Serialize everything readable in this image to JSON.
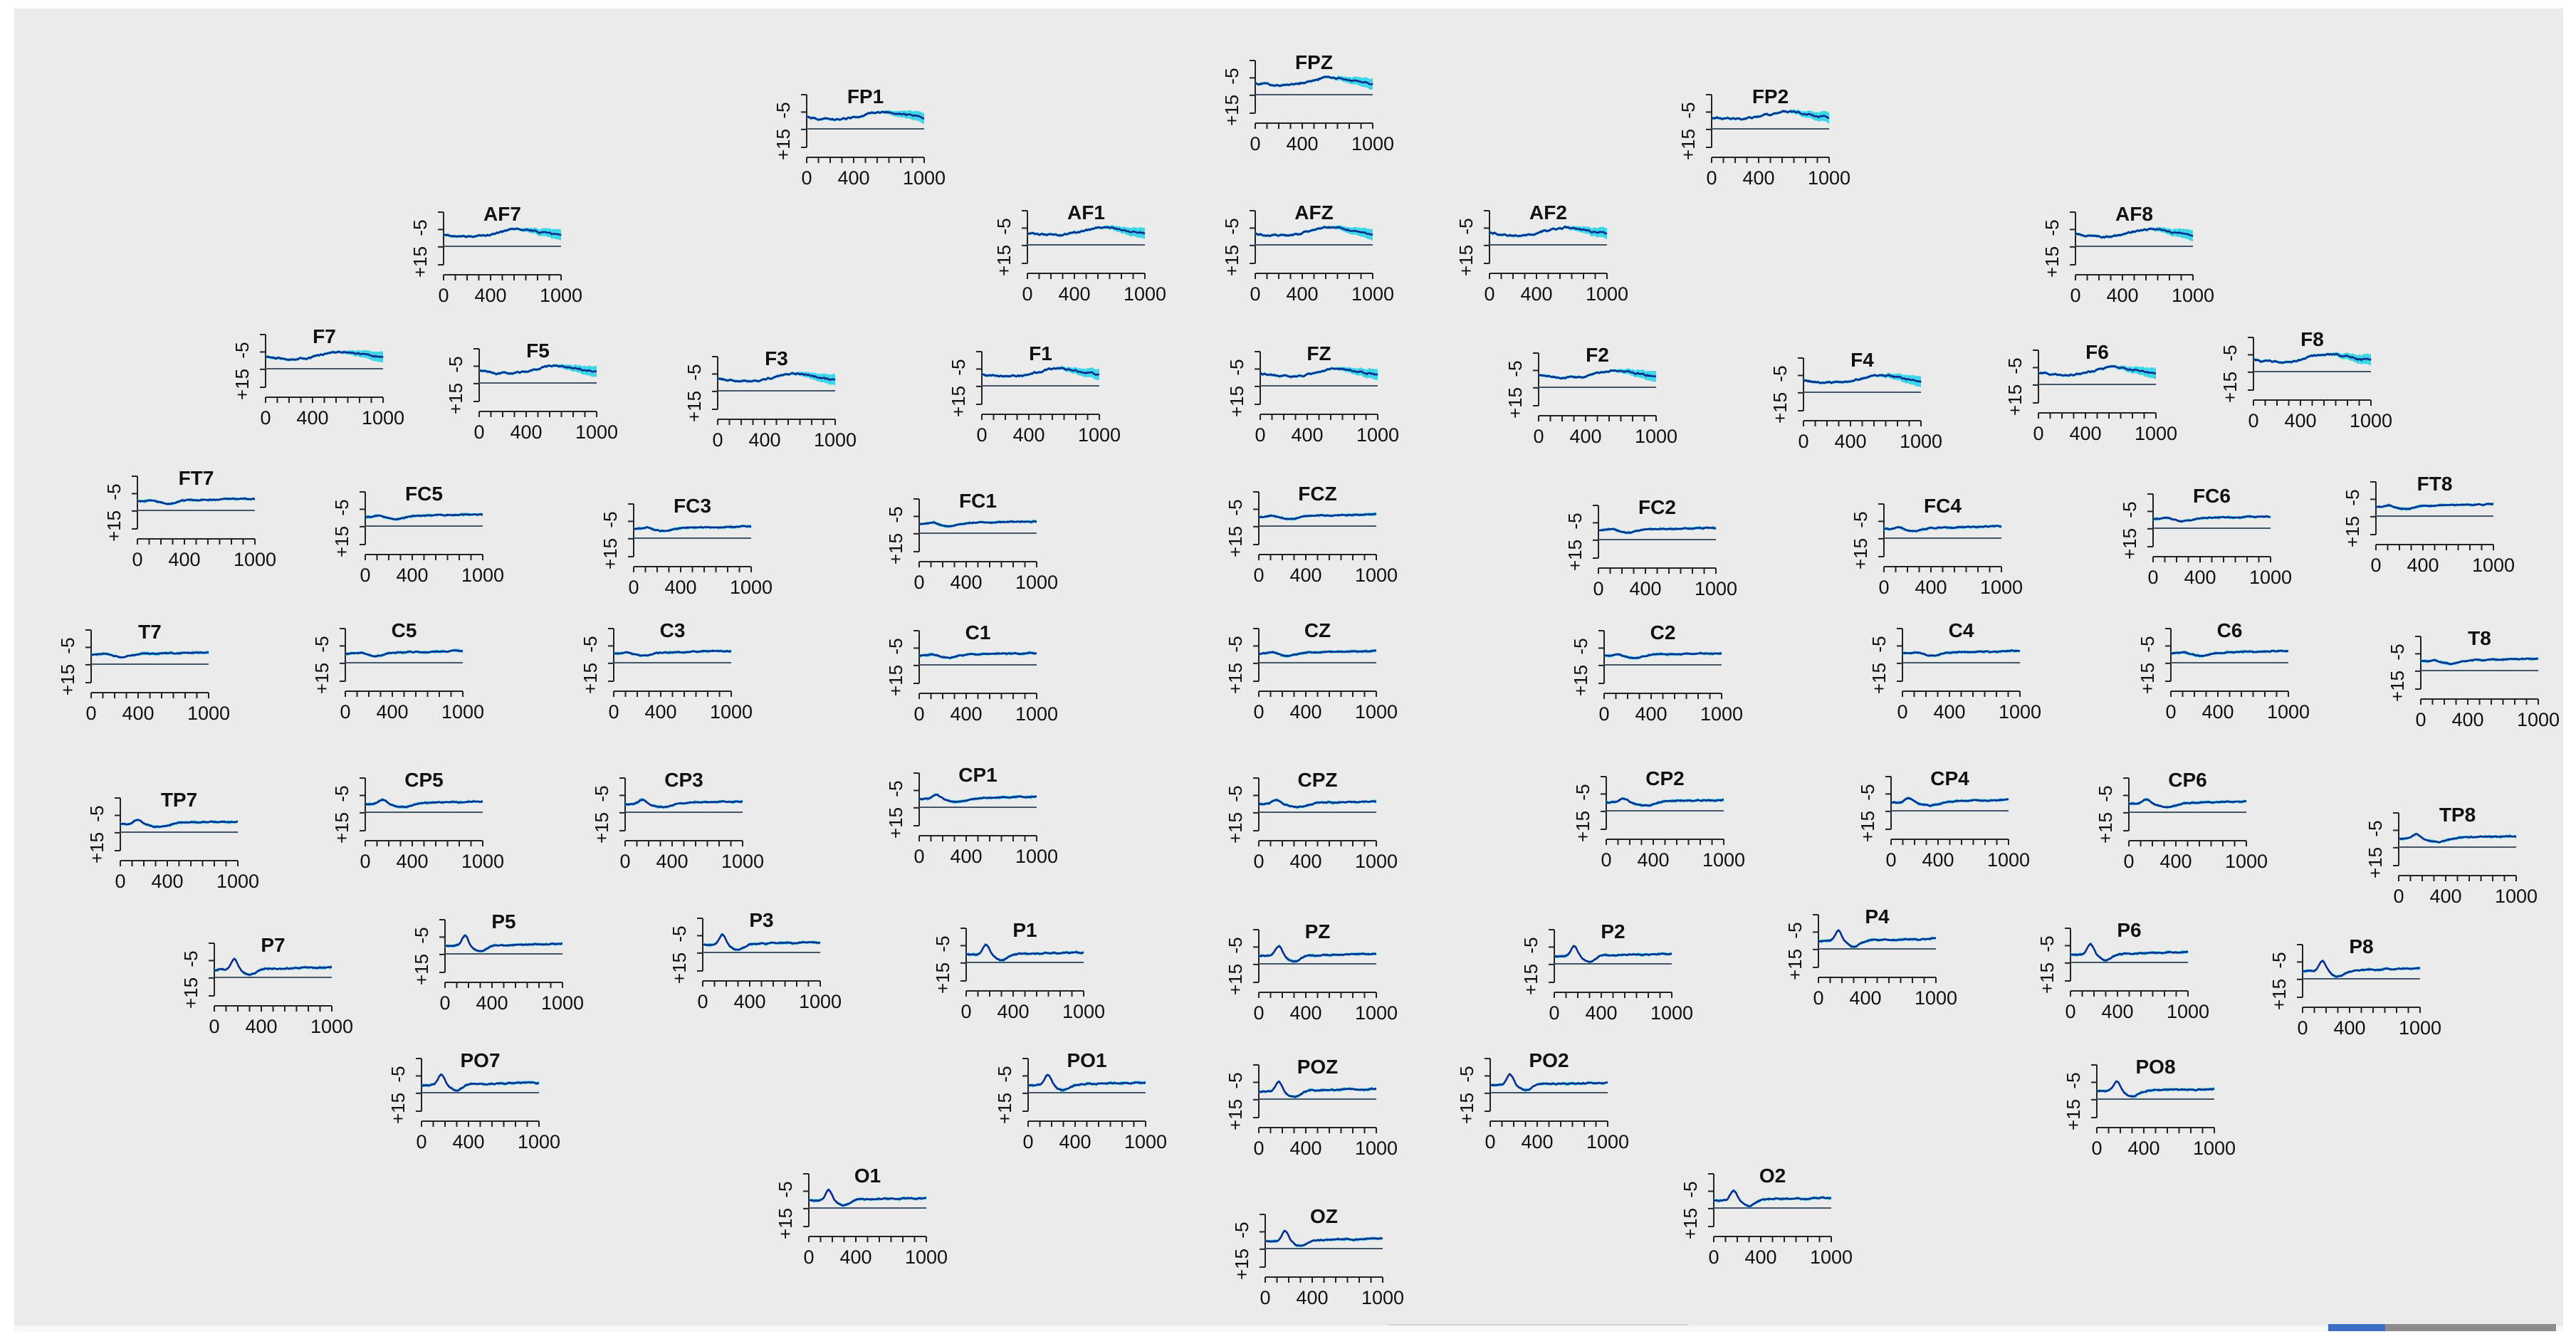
{
  "chart_data": {
    "type": "line",
    "layout": "scalp-topographic grid of small ERP line plots, one per electrode",
    "x_axis": {
      "ticks": [
        0,
        400,
        1000
      ],
      "range": [
        0,
        1000
      ]
    },
    "y_axis": {
      "ticks": [
        "-5",
        "+15"
      ],
      "range": [
        -5,
        15
      ],
      "inverted": true
    },
    "band_color": "#1ed4e8",
    "line_color": "#0b2c8f",
    "baseline_color": "#44556a",
    "plots": [
      {
        "name": "FPZ",
        "shape": "frontal"
      },
      {
        "name": "FP1",
        "shape": "frontal"
      },
      {
        "name": "FP2",
        "shape": "frontal"
      },
      {
        "name": "AF7",
        "shape": "frontal"
      },
      {
        "name": "AF1",
        "shape": "frontal"
      },
      {
        "name": "AFZ",
        "shape": "frontal"
      },
      {
        "name": "AF2",
        "shape": "frontal"
      },
      {
        "name": "AF8",
        "shape": "frontal"
      },
      {
        "name": "F7",
        "shape": "frontal"
      },
      {
        "name": "F5",
        "shape": "frontal"
      },
      {
        "name": "F3",
        "shape": "frontal"
      },
      {
        "name": "F1",
        "shape": "frontal"
      },
      {
        "name": "FZ",
        "shape": "frontal"
      },
      {
        "name": "F2",
        "shape": "frontal"
      },
      {
        "name": "F4",
        "shape": "frontal"
      },
      {
        "name": "F6",
        "shape": "frontal"
      },
      {
        "name": "F8",
        "shape": "frontal"
      },
      {
        "name": "FT7",
        "shape": "central"
      },
      {
        "name": "FC5",
        "shape": "central"
      },
      {
        "name": "FC3",
        "shape": "central"
      },
      {
        "name": "FC1",
        "shape": "central"
      },
      {
        "name": "FCZ",
        "shape": "central"
      },
      {
        "name": "FC2",
        "shape": "central"
      },
      {
        "name": "FC4",
        "shape": "central"
      },
      {
        "name": "FC6",
        "shape": "central"
      },
      {
        "name": "FT8",
        "shape": "central"
      },
      {
        "name": "T7",
        "shape": "central"
      },
      {
        "name": "C5",
        "shape": "central"
      },
      {
        "name": "C3",
        "shape": "central"
      },
      {
        "name": "C1",
        "shape": "central"
      },
      {
        "name": "CZ",
        "shape": "central"
      },
      {
        "name": "C2",
        "shape": "central"
      },
      {
        "name": "C4",
        "shape": "central"
      },
      {
        "name": "C6",
        "shape": "central"
      },
      {
        "name": "T8",
        "shape": "central"
      },
      {
        "name": "TP7",
        "shape": "parietal"
      },
      {
        "name": "CP5",
        "shape": "parietal"
      },
      {
        "name": "CP3",
        "shape": "parietal"
      },
      {
        "name": "CP1",
        "shape": "parietal"
      },
      {
        "name": "CPZ",
        "shape": "parietal"
      },
      {
        "name": "CP2",
        "shape": "parietal"
      },
      {
        "name": "CP4",
        "shape": "parietal"
      },
      {
        "name": "CP6",
        "shape": "parietal"
      },
      {
        "name": "TP8",
        "shape": "parietal"
      },
      {
        "name": "P7",
        "shape": "occipital"
      },
      {
        "name": "P5",
        "shape": "occipital"
      },
      {
        "name": "P3",
        "shape": "occipital"
      },
      {
        "name": "P1",
        "shape": "occipital"
      },
      {
        "name": "PZ",
        "shape": "occipital"
      },
      {
        "name": "P2",
        "shape": "occipital"
      },
      {
        "name": "P4",
        "shape": "occipital"
      },
      {
        "name": "P6",
        "shape": "occipital"
      },
      {
        "name": "P8",
        "shape": "occipital"
      },
      {
        "name": "PO7",
        "shape": "occipital"
      },
      {
        "name": "PO1",
        "shape": "occipital"
      },
      {
        "name": "POZ",
        "shape": "occipital"
      },
      {
        "name": "PO2",
        "shape": "occipital"
      },
      {
        "name": "PO8",
        "shape": "occipital"
      },
      {
        "name": "O1",
        "shape": "occipital"
      },
      {
        "name": "OZ",
        "shape": "occipital"
      },
      {
        "name": "O2",
        "shape": "occipital"
      }
    ]
  }
}
